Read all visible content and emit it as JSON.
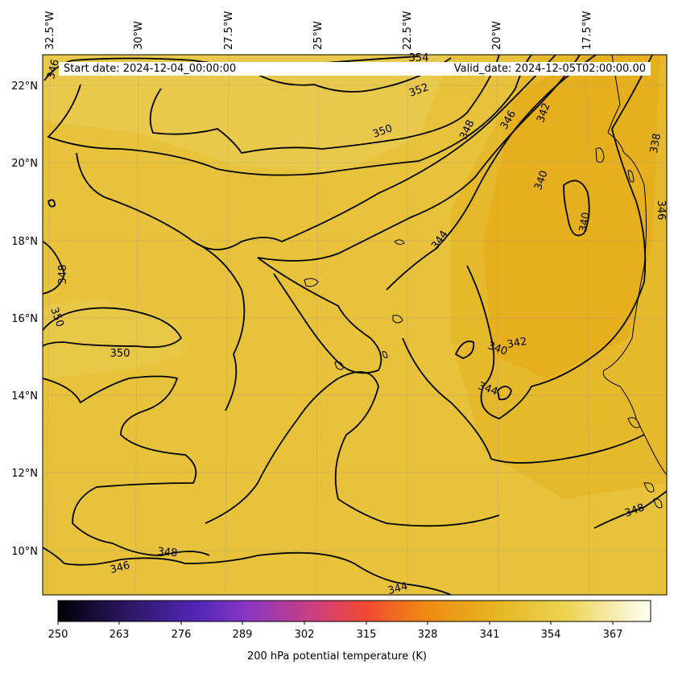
{
  "map": {
    "start_label": "Start date: 2024-12-04_00:00:00",
    "valid_label": "Valid_date: 2024-12-05T02:00:00.00",
    "lon_ticks": [
      "32.5°W",
      "30°W",
      "27.5°W",
      "25°W",
      "22.5°W",
      "20°W",
      "17.5°W"
    ],
    "lat_ticks": [
      "22°N",
      "20°N",
      "18°N",
      "16°N",
      "14°N",
      "12°N",
      "10°N"
    ],
    "contour_labels": [
      "354",
      "352",
      "350",
      "348",
      "346",
      "342",
      "340",
      "338",
      "346",
      "348",
      "350",
      "344",
      "340",
      "342",
      "340",
      "344",
      "348",
      "348",
      "346",
      "344",
      "350",
      "346"
    ],
    "colorbar": {
      "title": "200 hPa potential temperature (K)",
      "ticks": [
        "250",
        "263",
        "276",
        "289",
        "302",
        "315",
        "328",
        "341",
        "354",
        "367"
      ],
      "colors": [
        "#000000",
        "#2a1660",
        "#5c2bb8",
        "#8a37c2",
        "#c53d8a",
        "#f0463a",
        "#f08a10",
        "#e6b020",
        "#ecd85a",
        "#fffef0"
      ]
    },
    "field_colors": [
      "#e8c33a",
      "#e6b62a",
      "#e9ad1e",
      "#ebcf52"
    ]
  }
}
